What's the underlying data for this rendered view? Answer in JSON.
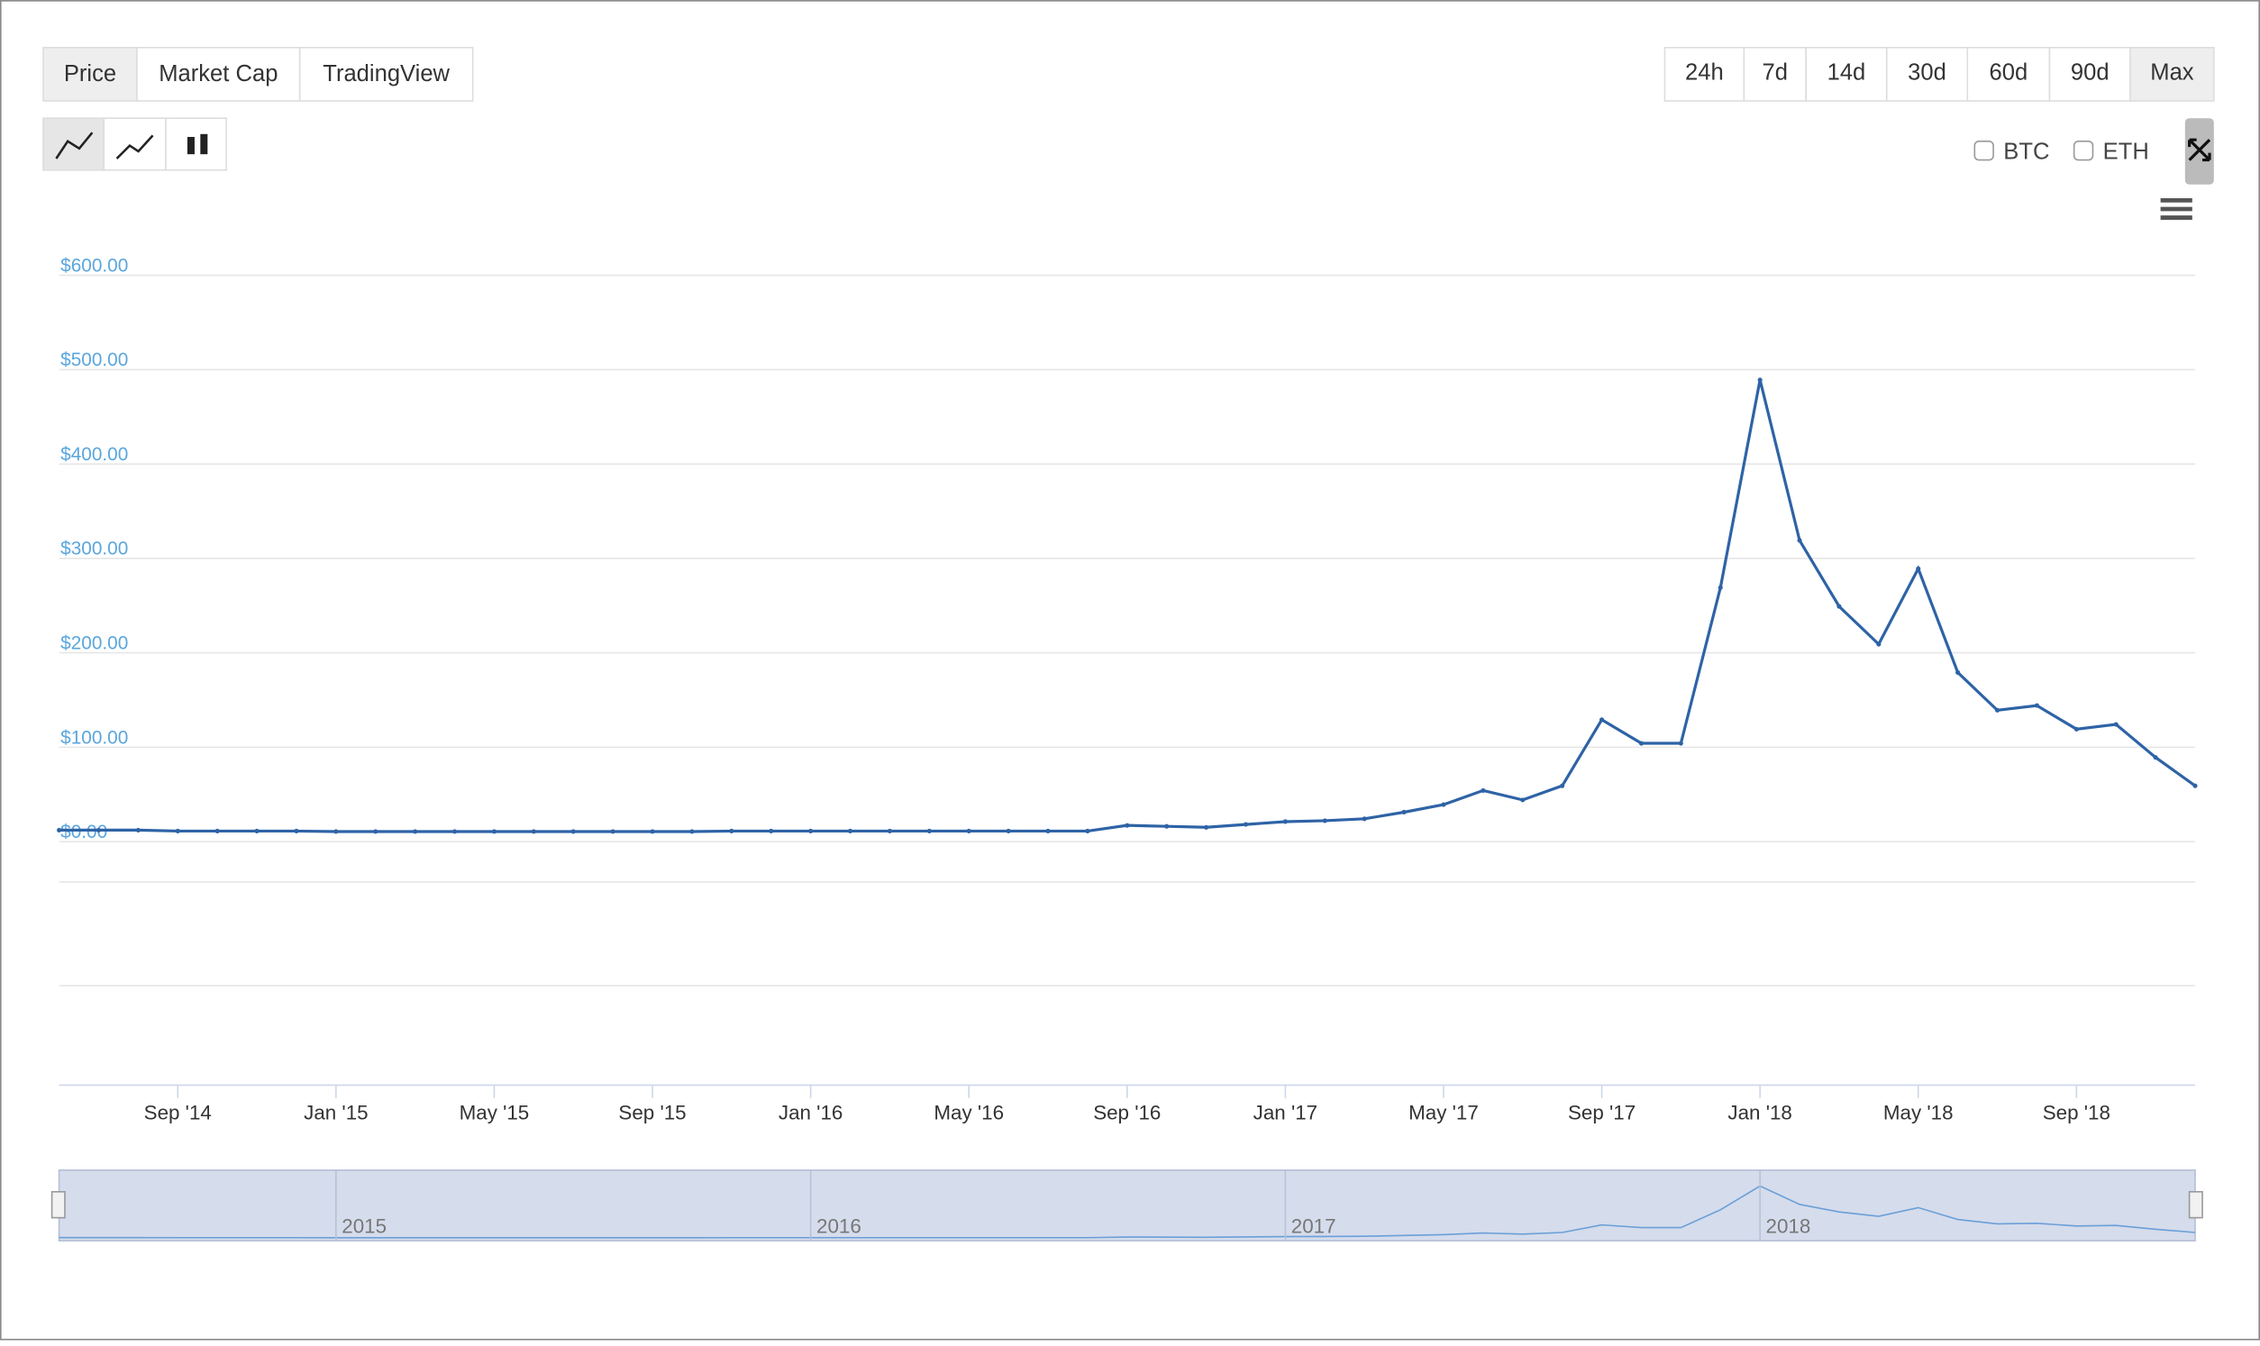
{
  "tabs": [
    "Price",
    "Market Cap",
    "TradingView"
  ],
  "ranges": [
    "24h",
    "7d",
    "14d",
    "30d",
    "60d",
    "90d",
    "Max"
  ],
  "compare": [
    "BTC",
    "ETH"
  ],
  "navigator": {
    "labels": [
      "2015",
      "2016",
      "2017",
      "2018"
    ]
  },
  "chart_data": {
    "type": "line",
    "color": "#2e63a6",
    "grid": true,
    "x": [
      "2014-06",
      "2014-07",
      "2014-08",
      "2014-09",
      "2014-10",
      "2014-11",
      "2014-12",
      "2015-01",
      "2015-02",
      "2015-03",
      "2015-04",
      "2015-05",
      "2015-06",
      "2015-07",
      "2015-08",
      "2015-09",
      "2015-10",
      "2015-11",
      "2015-12",
      "2016-01",
      "2016-02",
      "2016-03",
      "2016-04",
      "2016-05",
      "2016-06",
      "2016-07",
      "2016-08",
      "2016-09",
      "2016-10",
      "2016-11",
      "2016-12",
      "2017-01",
      "2017-02",
      "2017-03",
      "2017-04",
      "2017-05",
      "2017-06",
      "2017-07",
      "2017-08",
      "2017-09",
      "2017-10",
      "2017-11",
      "2017-12",
      "2018-01",
      "2018-02",
      "2018-03",
      "2018-04",
      "2018-05",
      "2018-06",
      "2018-07",
      "2018-08",
      "2018-09",
      "2018-10",
      "2018-11",
      "2018-12"
    ],
    "values": [
      3,
      3,
      3,
      2,
      2,
      2,
      2,
      1.5,
      1.5,
      1.5,
      1.5,
      1.5,
      1.5,
      1.5,
      1.5,
      1.5,
      1.5,
      2,
      2,
      2,
      2,
      2,
      2,
      2,
      2,
      2,
      2,
      8,
      7,
      6,
      9,
      12,
      13,
      15,
      22,
      30,
      45,
      35,
      50,
      120,
      95,
      95,
      260,
      480,
      310,
      240,
      200,
      280,
      170,
      130,
      135,
      110,
      115,
      80,
      50
    ],
    "xlim": [
      "2014-06",
      "2018-12"
    ],
    "xticks": [
      {
        "value": "2014-09",
        "label": "Sep '14"
      },
      {
        "value": "2015-01",
        "label": "Jan '15"
      },
      {
        "value": "2015-05",
        "label": "May '15"
      },
      {
        "value": "2015-09",
        "label": "Sep '15"
      },
      {
        "value": "2016-01",
        "label": "Jan '16"
      },
      {
        "value": "2016-05",
        "label": "May '16"
      },
      {
        "value": "2016-09",
        "label": "Sep '16"
      },
      {
        "value": "2017-01",
        "label": "Jan '17"
      },
      {
        "value": "2017-05",
        "label": "May '17"
      },
      {
        "value": "2017-09",
        "label": "Sep '17"
      },
      {
        "value": "2018-01",
        "label": "Jan '18"
      },
      {
        "value": "2018-05",
        "label": "May '18"
      },
      {
        "value": "2018-09",
        "label": "Sep '18"
      }
    ],
    "ylim": [
      0,
      600
    ],
    "yticks": [
      {
        "value": 0,
        "label": "$0.00"
      },
      {
        "value": 100,
        "label": "$100.00"
      },
      {
        "value": 200,
        "label": "$200.00"
      },
      {
        "value": 300,
        "label": "$300.00"
      },
      {
        "value": 400,
        "label": "$400.00"
      },
      {
        "value": 500,
        "label": "$500.00"
      },
      {
        "value": 600,
        "label": "$600.00"
      }
    ]
  }
}
